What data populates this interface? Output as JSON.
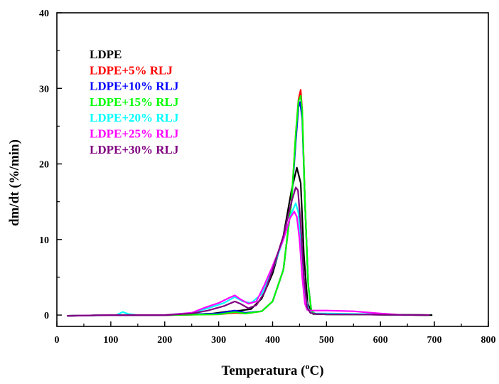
{
  "chart_data": {
    "type": "line",
    "title": "",
    "xlabel": {
      "main": "Temperatura (",
      "sup": "o",
      "tail": "C)"
    },
    "ylabel": "dm/dt (%/min)",
    "xlim": [
      0,
      800
    ],
    "ylim": [
      -1.5,
      40
    ],
    "x_ticks": [
      "0",
      "100",
      "200",
      "300",
      "400",
      "500",
      "600",
      "700",
      "800"
    ],
    "y_ticks": [
      "0",
      "10",
      "20",
      "30",
      "40"
    ],
    "grid": false,
    "legend_position": "top-left",
    "series": [
      {
        "name": "LDPE",
        "color": "#000000",
        "x": [
          20,
          100,
          200,
          250,
          290,
          320,
          340,
          360,
          380,
          400,
          420,
          435,
          445,
          452,
          458,
          465,
          475,
          500,
          600,
          695
        ],
        "y": [
          -0.1,
          0,
          0,
          0.05,
          0.2,
          0.5,
          0.6,
          0.8,
          2.2,
          5.5,
          10.5,
          16.5,
          19.5,
          17.5,
          8,
          1.5,
          0.15,
          0.1,
          0.05,
          0
        ]
      },
      {
        "name": "LDPE+5% RLJ",
        "color": "#ff0000",
        "x": [
          20,
          100,
          200,
          300,
          330,
          350,
          380,
          400,
          420,
          435,
          443,
          448,
          452,
          455,
          460,
          466,
          472,
          480,
          500,
          600,
          690
        ],
        "y": [
          -0.1,
          0,
          0,
          0.1,
          0.3,
          0.2,
          0.5,
          1.8,
          6,
          15,
          24,
          28.5,
          29.8,
          27,
          15,
          4,
          0.5,
          0.15,
          0.1,
          0.05,
          0
        ]
      },
      {
        "name": "LDPE+10% RLJ",
        "color": "#0000ff",
        "x": [
          20,
          100,
          200,
          300,
          330,
          350,
          380,
          400,
          420,
          435,
          443,
          448,
          451,
          455,
          460,
          466,
          472,
          480,
          500,
          600,
          690
        ],
        "y": [
          -0.1,
          0,
          0,
          0.2,
          0.6,
          0.3,
          0.5,
          1.8,
          6,
          15,
          23,
          27.5,
          28.2,
          26,
          15,
          4,
          0.5,
          0.15,
          0.1,
          0.05,
          0
        ]
      },
      {
        "name": "LDPE+15% RLJ",
        "color": "#00ff00",
        "x": [
          20,
          100,
          200,
          300,
          330,
          350,
          380,
          400,
          420,
          435,
          443,
          448,
          452,
          455,
          460,
          466,
          472,
          480,
          500,
          600,
          690
        ],
        "y": [
          -0.1,
          0,
          0,
          0.1,
          0.4,
          0.2,
          0.5,
          1.8,
          6,
          15,
          24,
          28.3,
          29,
          27,
          15,
          4,
          0.5,
          0.15,
          0.1,
          0.05,
          0
        ]
      },
      {
        "name": "LDPE+20% RLJ",
        "color": "#00ffff",
        "x": [
          20,
          110,
          122,
          135,
          150,
          200,
          250,
          280,
          310,
          330,
          345,
          360,
          380,
          400,
          420,
          435,
          443,
          448,
          455,
          460,
          466,
          472,
          480,
          500,
          600,
          650
        ],
        "y": [
          -0.1,
          0,
          0.4,
          0.1,
          0,
          0,
          0.3,
          0.9,
          1.6,
          2.4,
          1.8,
          1.6,
          2.8,
          6,
          10,
          13.5,
          14.8,
          13.5,
          8,
          3,
          0.8,
          0.3,
          0.2,
          0.2,
          0.1,
          0
        ]
      },
      {
        "name": "LDPE+25% RLJ",
        "color": "#ff00ff",
        "x": [
          20,
          100,
          200,
          250,
          275,
          300,
          320,
          330,
          340,
          355,
          370,
          385,
          400,
          420,
          432,
          440,
          445,
          450,
          455,
          460,
          464,
          470,
          500,
          550,
          600,
          645
        ],
        "y": [
          -0.1,
          0,
          0,
          0.3,
          1,
          1.6,
          2.3,
          2.6,
          2.1,
          1.5,
          1.8,
          4,
          6.5,
          10,
          12.8,
          13.7,
          13,
          10,
          5,
          1.5,
          0.7,
          0.6,
          0.6,
          0.5,
          0.2,
          0
        ]
      },
      {
        "name": "LDPE+30% RLJ",
        "color": "#800080",
        "x": [
          20,
          100,
          200,
          250,
          280,
          310,
          330,
          340,
          355,
          370,
          385,
          400,
          420,
          435,
          443,
          447,
          452,
          458,
          464,
          470,
          480,
          500,
          600,
          690
        ],
        "y": [
          -0.1,
          0,
          0,
          0.2,
          0.6,
          1.2,
          1.8,
          1.5,
          0.9,
          1.3,
          3,
          6,
          10.5,
          15,
          16.9,
          16.5,
          12,
          5,
          1,
          0.3,
          0.15,
          0.1,
          0.05,
          0
        ]
      }
    ]
  }
}
